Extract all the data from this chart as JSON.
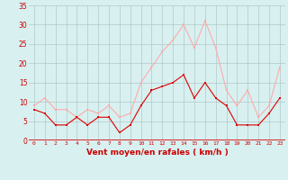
{
  "x": [
    0,
    1,
    2,
    3,
    4,
    5,
    6,
    7,
    8,
    9,
    10,
    11,
    12,
    13,
    14,
    15,
    16,
    17,
    18,
    19,
    20,
    21,
    22,
    23
  ],
  "mean_wind": [
    8,
    7,
    4,
    4,
    6,
    4,
    6,
    6,
    2,
    4,
    9,
    13,
    14,
    15,
    17,
    11,
    15,
    11,
    9,
    4,
    4,
    4,
    7,
    11
  ],
  "gust_wind": [
    9,
    11,
    8,
    8,
    6,
    8,
    7,
    9,
    6,
    7,
    15,
    19,
    23,
    26,
    30,
    24,
    31,
    24,
    13,
    9,
    13,
    6,
    9,
    19
  ],
  "mean_color": "#dd0000",
  "gust_color": "#ffaaaa",
  "bg_color": "#d8f0f0",
  "grid_color": "#b0c8c8",
  "xlabel": "Vent moyen/en rafales ( km/h )",
  "ylim": [
    0,
    35
  ],
  "yticks": [
    0,
    5,
    10,
    15,
    20,
    25,
    30,
    35
  ]
}
